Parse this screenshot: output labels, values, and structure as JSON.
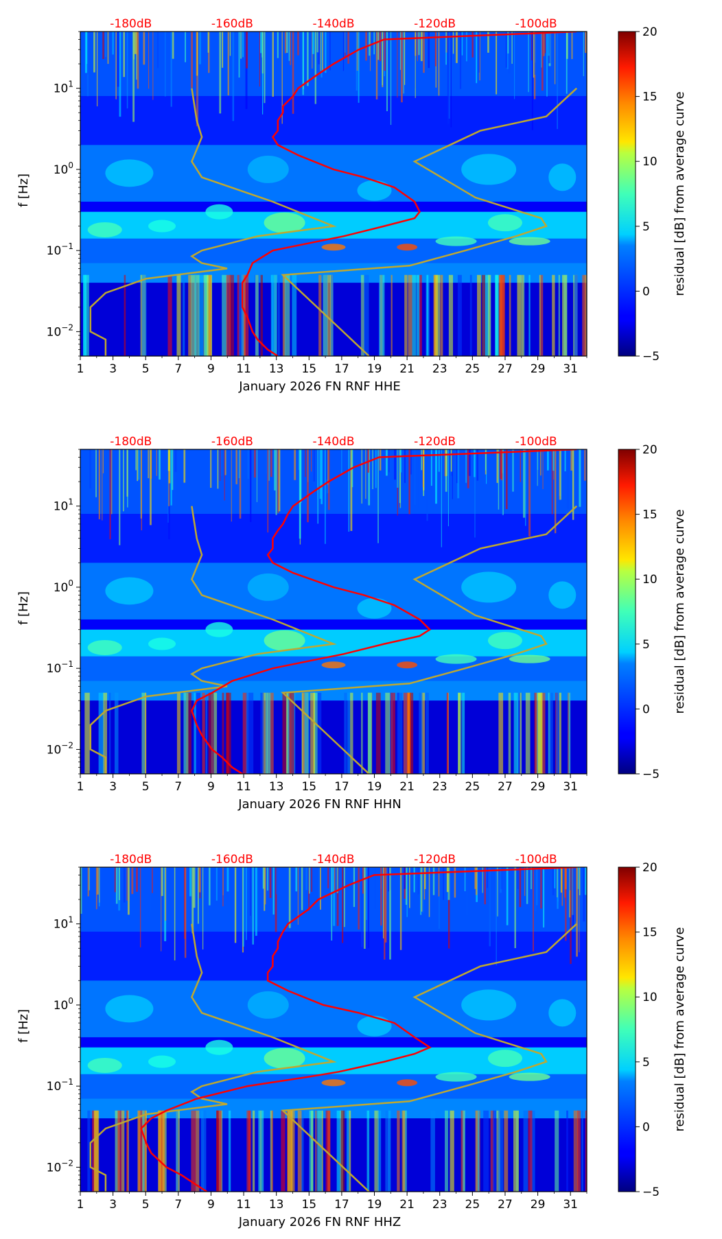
{
  "colors": {
    "red_curve": "#ff0000",
    "model_curve": "#bfa830",
    "db_text": "#ff0000",
    "background": "#ffffff"
  },
  "colormap": "jet",
  "chart_data": [
    {
      "type": "heatmap",
      "component": "HHE",
      "xlabel": "January 2026 FN RNF  HHE",
      "ylabel": "f [Hz]",
      "xlim": [
        1,
        32
      ],
      "ylim": [
        0.005,
        50
      ],
      "yscale": "log",
      "xticks": [
        1,
        3,
        5,
        7,
        9,
        11,
        13,
        15,
        17,
        19,
        21,
        23,
        25,
        27,
        29,
        31
      ],
      "yticks": [
        {
          "value": 0.01,
          "base": "10",
          "exp": "−2"
        },
        {
          "value": 0.1,
          "base": "10",
          "exp": "−1"
        },
        {
          "value": 1,
          "base": "10",
          "exp": "0"
        },
        {
          "value": 10,
          "base": "10",
          "exp": "1"
        }
      ],
      "db_axis": {
        "range": [
          -190,
          -90
        ],
        "ticks": [
          {
            "value": -180,
            "label": "-180dB"
          },
          {
            "value": -160,
            "label": "-160dB"
          },
          {
            "value": -140,
            "label": "-140dB"
          },
          {
            "value": -120,
            "label": "-120dB"
          },
          {
            "value": -100,
            "label": "-100dB"
          }
        ]
      },
      "colorbar": {
        "label": "residual [dB] from average curve",
        "range": [
          -5,
          20
        ],
        "ticks": [
          {
            "value": -5,
            "label": "−5"
          },
          {
            "value": 0,
            "label": "0"
          },
          {
            "value": 5,
            "label": "5"
          },
          {
            "value": 10,
            "label": "10"
          },
          {
            "value": 15,
            "label": "15"
          },
          {
            "value": 20,
            "label": "20"
          }
        ]
      },
      "average_curve_db": {
        "freq": [
          0.005,
          0.006,
          0.008,
          0.01,
          0.015,
          0.02,
          0.03,
          0.04,
          0.05,
          0.07,
          0.1,
          0.13,
          0.15,
          0.2,
          0.25,
          0.3,
          0.4,
          0.6,
          0.8,
          1.0,
          1.5,
          2.0,
          2.5,
          3,
          4,
          5,
          6,
          8,
          10,
          15,
          20,
          30,
          40,
          50
        ],
        "db": [
          -151,
          -153,
          -155,
          -156,
          -157,
          -158,
          -158,
          -158,
          -157,
          -156,
          -152,
          -143,
          -138,
          -130,
          -124,
          -123,
          -124,
          -128,
          -134,
          -140,
          -147,
          -151,
          -152,
          -151,
          -151,
          -150,
          -150,
          -148,
          -147,
          -143,
          -140,
          -135,
          -130,
          -92
        ]
      },
      "model_curves_db": [
        {
          "freq": [
            0.005,
            0.008,
            0.01,
            0.02,
            0.03,
            0.045,
            0.06,
            0.07,
            0.085,
            0.1,
            0.15,
            0.2,
            0.4,
            0.8,
            1.25,
            2.5,
            4,
            10
          ],
          "db": [
            -185,
            -185,
            -188,
            -188,
            -185,
            -177,
            -161,
            -166,
            -168,
            -166,
            -155,
            -140,
            -152,
            -166,
            -168,
            -166,
            -167,
            -168
          ]
        },
        {
          "freq": [
            0.005,
            0.05,
            0.065,
            0.1,
            0.15,
            0.2,
            0.25,
            0.45,
            1.25,
            3.0,
            4.5,
            10
          ],
          "db": [
            -133,
            -150,
            -125,
            -114,
            -104,
            -98,
            -99,
            -112,
            -124,
            -111,
            -98,
            -92
          ]
        }
      ]
    },
    {
      "type": "heatmap",
      "component": "HHN",
      "xlabel": "January 2026 FN RNF  HHN",
      "ylabel": "f [Hz]",
      "xlim": [
        1,
        32
      ],
      "ylim": [
        0.005,
        50
      ],
      "yscale": "log",
      "xticks": [
        1,
        3,
        5,
        7,
        9,
        11,
        13,
        15,
        17,
        19,
        21,
        23,
        25,
        27,
        29,
        31
      ],
      "yticks": [
        {
          "value": 0.01,
          "base": "10",
          "exp": "−2"
        },
        {
          "value": 0.1,
          "base": "10",
          "exp": "−1"
        },
        {
          "value": 1,
          "base": "10",
          "exp": "0"
        },
        {
          "value": 10,
          "base": "10",
          "exp": "1"
        }
      ],
      "db_axis": {
        "range": [
          -190,
          -90
        ],
        "ticks": [
          {
            "value": -180,
            "label": "-180dB"
          },
          {
            "value": -160,
            "label": "-160dB"
          },
          {
            "value": -140,
            "label": "-140dB"
          },
          {
            "value": -120,
            "label": "-120dB"
          },
          {
            "value": -100,
            "label": "-100dB"
          }
        ]
      },
      "colorbar": {
        "label": "residual [dB] from average curve",
        "range": [
          -5,
          20
        ],
        "ticks": [
          {
            "value": -5,
            "label": "−5"
          },
          {
            "value": 0,
            "label": "0"
          },
          {
            "value": 5,
            "label": "5"
          },
          {
            "value": 10,
            "label": "10"
          },
          {
            "value": 15,
            "label": "15"
          },
          {
            "value": 20,
            "label": "20"
          }
        ]
      },
      "average_curve_db": {
        "freq": [
          0.005,
          0.006,
          0.008,
          0.01,
          0.015,
          0.02,
          0.03,
          0.04,
          0.05,
          0.07,
          0.1,
          0.13,
          0.15,
          0.2,
          0.25,
          0.3,
          0.4,
          0.6,
          0.8,
          1.0,
          1.5,
          2.0,
          2.5,
          3,
          4,
          5,
          6,
          8,
          10,
          15,
          20,
          30,
          40,
          50
        ],
        "db": [
          -158,
          -160,
          -162,
          -164,
          -166,
          -167,
          -168,
          -167,
          -164,
          -160,
          -152,
          -143,
          -138,
          -130,
          -123,
          -121,
          -123,
          -128,
          -134,
          -140,
          -148,
          -152,
          -153,
          -152,
          -152,
          -151,
          -150,
          -149,
          -148,
          -144,
          -141,
          -136,
          -131,
          -92
        ]
      },
      "model_curves_db": [
        {
          "freq": [
            0.005,
            0.008,
            0.01,
            0.02,
            0.03,
            0.045,
            0.06,
            0.07,
            0.085,
            0.1,
            0.15,
            0.2,
            0.4,
            0.8,
            1.25,
            2.5,
            4,
            10
          ],
          "db": [
            -185,
            -185,
            -188,
            -188,
            -185,
            -177,
            -161,
            -166,
            -168,
            -166,
            -155,
            -140,
            -152,
            -166,
            -168,
            -166,
            -167,
            -168
          ]
        },
        {
          "freq": [
            0.005,
            0.05,
            0.065,
            0.1,
            0.15,
            0.2,
            0.25,
            0.45,
            1.25,
            3.0,
            4.5,
            10
          ],
          "db": [
            -133,
            -150,
            -125,
            -114,
            -104,
            -98,
            -99,
            -112,
            -124,
            -111,
            -98,
            -92
          ]
        }
      ]
    },
    {
      "type": "heatmap",
      "component": "HHZ",
      "xlabel": "January 2026 FN RNF  HHZ",
      "ylabel": "f [Hz]",
      "xlim": [
        1,
        32
      ],
      "ylim": [
        0.005,
        50
      ],
      "yscale": "log",
      "xticks": [
        1,
        3,
        5,
        7,
        9,
        11,
        13,
        15,
        17,
        19,
        21,
        23,
        25,
        27,
        29,
        31
      ],
      "yticks": [
        {
          "value": 0.01,
          "base": "10",
          "exp": "−2"
        },
        {
          "value": 0.1,
          "base": "10",
          "exp": "−1"
        },
        {
          "value": 1,
          "base": "10",
          "exp": "0"
        },
        {
          "value": 10,
          "base": "10",
          "exp": "1"
        }
      ],
      "db_axis": {
        "range": [
          -190,
          -90
        ],
        "ticks": [
          {
            "value": -180,
            "label": "-180dB"
          },
          {
            "value": -160,
            "label": "-160dB"
          },
          {
            "value": -140,
            "label": "-140dB"
          },
          {
            "value": -120,
            "label": "-120dB"
          },
          {
            "value": -100,
            "label": "-100dB"
          }
        ]
      },
      "colorbar": {
        "label": "residual [dB] from average curve",
        "range": [
          -5,
          20
        ],
        "ticks": [
          {
            "value": -5,
            "label": "−5"
          },
          {
            "value": 0,
            "label": "0"
          },
          {
            "value": 5,
            "label": "5"
          },
          {
            "value": 10,
            "label": "10"
          },
          {
            "value": 15,
            "label": "15"
          },
          {
            "value": 20,
            "label": "20"
          }
        ]
      },
      "average_curve_db": {
        "freq": [
          0.005,
          0.006,
          0.008,
          0.01,
          0.015,
          0.02,
          0.03,
          0.04,
          0.05,
          0.07,
          0.1,
          0.13,
          0.15,
          0.2,
          0.25,
          0.3,
          0.4,
          0.6,
          0.8,
          1.0,
          1.5,
          2.0,
          2.5,
          3,
          4,
          5,
          6,
          8,
          10,
          15,
          20,
          30,
          40,
          50
        ],
        "db": [
          -165,
          -167,
          -170,
          -173,
          -176,
          -177,
          -178,
          -176,
          -173,
          -167,
          -157,
          -145,
          -139,
          -130,
          -124,
          -121,
          -124,
          -128,
          -135,
          -142,
          -149,
          -153,
          -153,
          -152,
          -152,
          -151,
          -151,
          -150,
          -149,
          -145,
          -143,
          -137,
          -132,
          -92
        ]
      },
      "model_curves_db": [
        {
          "freq": [
            0.005,
            0.008,
            0.01,
            0.02,
            0.03,
            0.045,
            0.06,
            0.07,
            0.085,
            0.1,
            0.15,
            0.2,
            0.4,
            0.8,
            1.25,
            2.5,
            4,
            10
          ],
          "db": [
            -185,
            -185,
            -188,
            -188,
            -185,
            -177,
            -161,
            -166,
            -168,
            -166,
            -155,
            -140,
            -152,
            -166,
            -168,
            -166,
            -167,
            -168
          ]
        },
        {
          "freq": [
            0.005,
            0.05,
            0.065,
            0.1,
            0.15,
            0.2,
            0.25,
            0.45,
            1.25,
            3.0,
            4.5,
            10
          ],
          "db": [
            -133,
            -150,
            -125,
            -114,
            -104,
            -98,
            -99,
            -112,
            -124,
            -111,
            -98,
            -92
          ]
        }
      ]
    }
  ]
}
